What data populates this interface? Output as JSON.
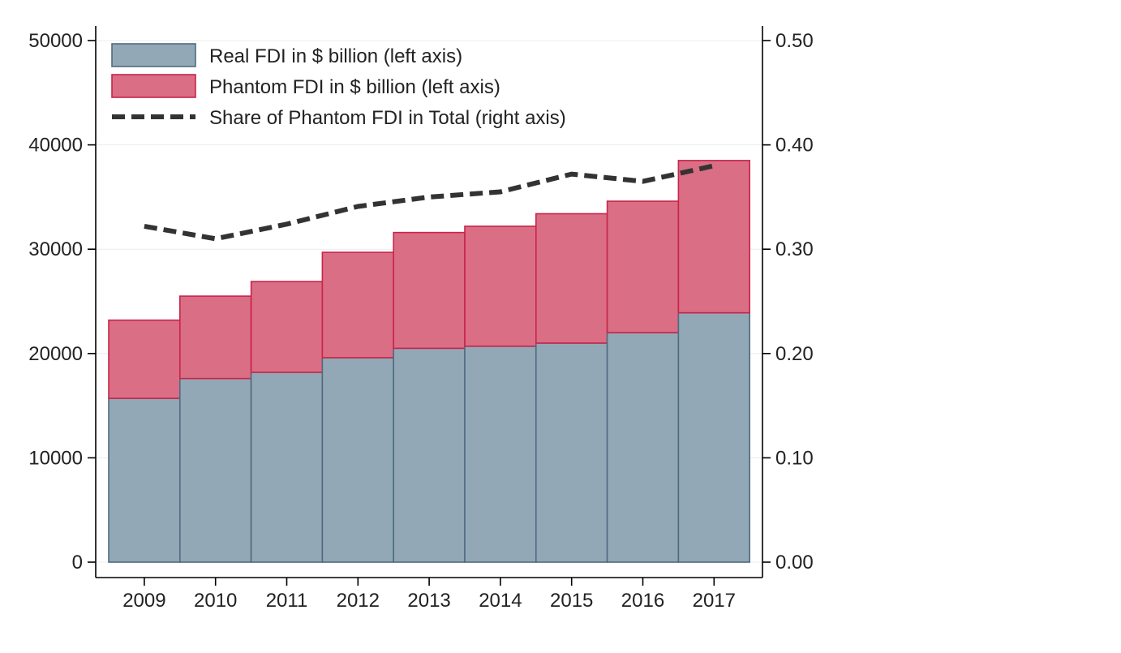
{
  "chart_data": {
    "type": "bar",
    "stacked": true,
    "categories": [
      "2009",
      "2010",
      "2011",
      "2012",
      "2013",
      "2014",
      "2015",
      "2016",
      "2017"
    ],
    "series": [
      {
        "name": "Real FDI in $ billion (left axis)",
        "type": "bar",
        "axis": "left",
        "color": "#93a8b6",
        "edge_color": "#4f6b80",
        "values": [
          15700,
          17600,
          18200,
          19600,
          20500,
          20700,
          21000,
          22000,
          23900
        ]
      },
      {
        "name": "Phantom FDI in $ billion (left axis)",
        "type": "bar",
        "axis": "left",
        "color": "#da6e84",
        "edge_color": "#c8244a",
        "values": [
          7500,
          7900,
          8700,
          10100,
          11100,
          11500,
          12400,
          12600,
          14600
        ]
      },
      {
        "name": "Share of Phantom FDI in Total (right axis)",
        "type": "line",
        "axis": "right",
        "style": "dashed",
        "color": "#333333",
        "values": [
          0.322,
          0.31,
          0.324,
          0.341,
          0.35,
          0.355,
          0.372,
          0.365,
          0.38
        ]
      }
    ],
    "left_axis": {
      "ylim": [
        0,
        50000
      ],
      "ticks": [
        0,
        10000,
        20000,
        30000,
        40000,
        50000
      ],
      "tick_labels": [
        "0",
        "10000",
        "20000",
        "30000",
        "40000",
        "50000"
      ]
    },
    "right_axis": {
      "ylim": [
        0,
        0.5
      ],
      "ticks": [
        0,
        0.1,
        0.2,
        0.3,
        0.4,
        0.5
      ],
      "tick_labels": [
        "0.00",
        "0.10",
        "0.20",
        "0.30",
        "0.40",
        "0.50"
      ]
    },
    "grid": true,
    "legend_position": "top-left",
    "title": "",
    "xlabel": "",
    "ylabel": ""
  }
}
